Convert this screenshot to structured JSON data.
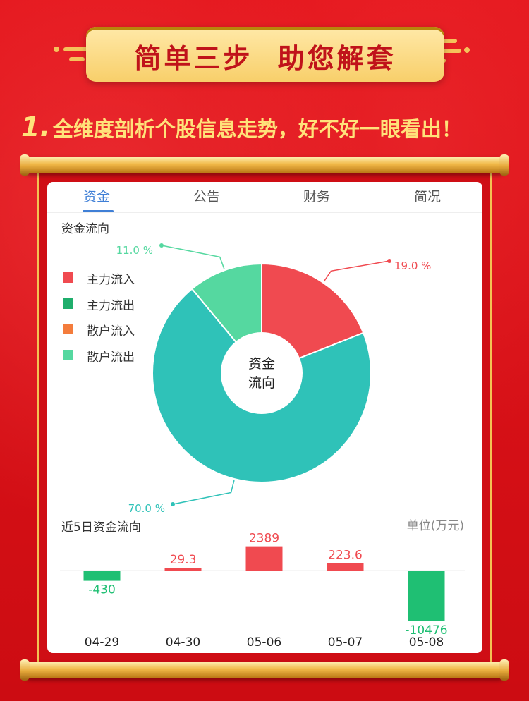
{
  "banner": {
    "title": "简单三步  助您解套"
  },
  "subtitle": {
    "number": "1.",
    "text": "全维度剖析个股信息走势，好不好一眼看出！"
  },
  "tabs": [
    {
      "label": "资金",
      "active": true
    },
    {
      "label": "公告",
      "active": false
    },
    {
      "label": "财务",
      "active": false
    },
    {
      "label": "简况",
      "active": false
    }
  ],
  "flow_section": {
    "title": "资金流向",
    "center_label_line1": "资金",
    "center_label_line2": "流向"
  },
  "legend": [
    {
      "label": "主力流入",
      "color": "#f04a50"
    },
    {
      "label": "主力流出",
      "color": "#1fae6c"
    },
    {
      "label": "散户流入",
      "color": "#f47c3c"
    },
    {
      "label": "散户流出",
      "color": "#55d8a0"
    }
  ],
  "five_day": {
    "title": "近5日资金流向",
    "unit": "单位(万元)"
  },
  "colors": {
    "accent": "#3f7fd6",
    "inflow": "#f04a50",
    "outflow": "#1fbf73",
    "retail_out": "#55d8a0",
    "main_out_pie": "#2fc2b8"
  },
  "chart_data": [
    {
      "type": "pie",
      "title": "资金流向",
      "slices": [
        {
          "name": "主力流入",
          "value": 19.0,
          "label": "19.0 %",
          "color": "#f04a50"
        },
        {
          "name": "主力流出",
          "value": 70.0,
          "label": "70.0 %",
          "color": "#2fc2b8"
        },
        {
          "name": "散户流出",
          "value": 11.0,
          "label": "11.0 %",
          "color": "#55d8a0"
        }
      ]
    },
    {
      "type": "bar",
      "title": "近5日资金流向",
      "categories": [
        "04-29",
        "04-30",
        "05-06",
        "05-07",
        "05-08"
      ],
      "values": [
        -430,
        29.3,
        2389,
        223.6,
        -10476
      ],
      "labels": [
        "-430",
        "29.3",
        "2389",
        "223.6",
        "-10476"
      ],
      "ylabel": "单位(万元)"
    }
  ]
}
